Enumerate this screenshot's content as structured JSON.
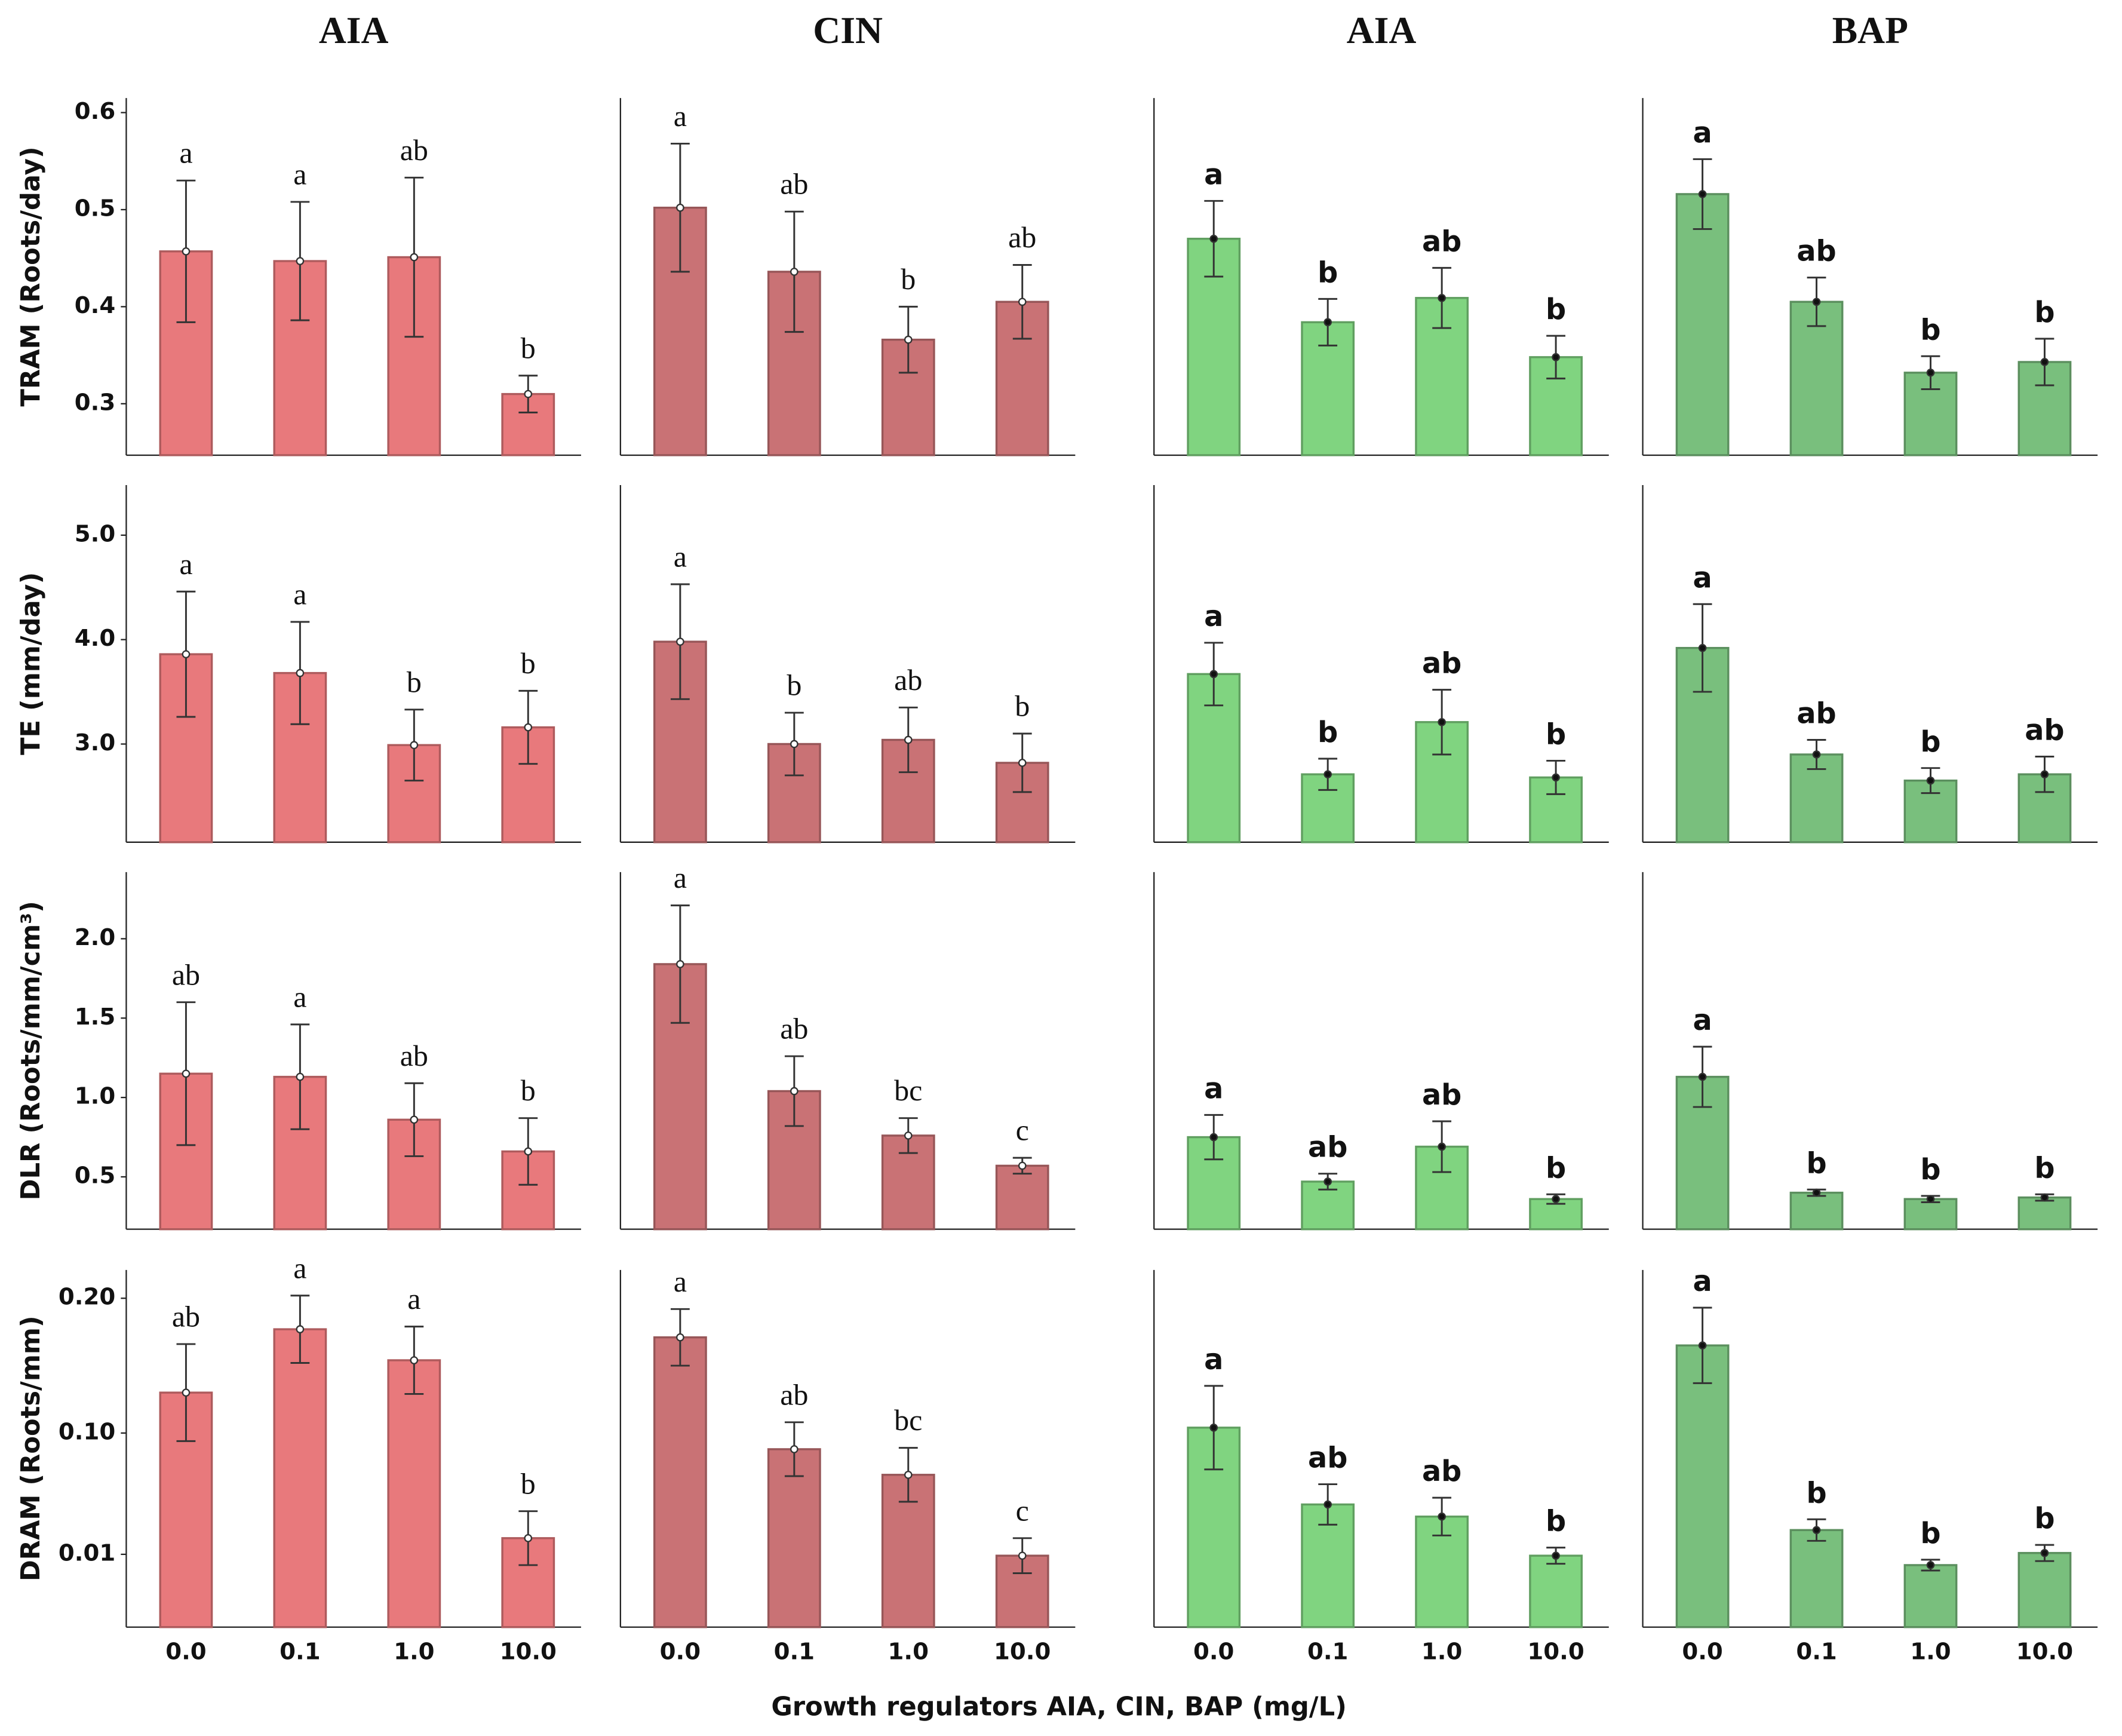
{
  "chart_data": [
    {
      "type": "bar",
      "title": "AIA",
      "ylabel": "TRAM (Roots/day)",
      "values": [
        0.457,
        0.447,
        0.451,
        0.31
      ],
      "errors": [
        0.073,
        0.061,
        0.082,
        0.019
      ],
      "annotations": [
        "a",
        "a",
        "ab",
        "b"
      ],
      "color": "#e8797c",
      "ylim": [
        0.247,
        0.615
      ],
      "yticks": [
        0.3,
        0.4,
        0.5,
        0.6
      ]
    },
    {
      "type": "bar",
      "title": "CIN",
      "values": [
        0.502,
        0.436,
        0.366,
        0.405
      ],
      "errors": [
        0.066,
        0.062,
        0.034,
        0.038
      ],
      "annotations": [
        "a",
        "ab",
        "b",
        "ab"
      ],
      "color": "#c97275",
      "ylim": [
        0.247,
        0.615
      ]
    },
    {
      "type": "bar",
      "title": "AIA",
      "values": [
        0.47,
        0.384,
        0.409,
        0.348
      ],
      "errors": [
        0.039,
        0.024,
        0.031,
        0.022
      ],
      "annotations": [
        "a",
        "b",
        "ab",
        "b"
      ],
      "color": "#80d480",
      "ylim": [
        0.247,
        0.615
      ]
    },
    {
      "type": "bar",
      "title": "BAP",
      "values": [
        0.516,
        0.405,
        0.332,
        0.343
      ],
      "errors": [
        0.036,
        0.025,
        0.017,
        0.024
      ],
      "annotations": [
        "a",
        "ab",
        "b",
        "b"
      ],
      "color": "#79bf7d",
      "ylim": [
        0.247,
        0.615
      ]
    },
    {
      "type": "bar",
      "ylabel": "TE (mm/day)",
      "values": [
        3.86,
        3.68,
        2.99,
        3.16
      ],
      "errors": [
        0.6,
        0.49,
        0.34,
        0.35
      ],
      "annotations": [
        "a",
        "a",
        "b",
        "b"
      ],
      "color": "#e8797c",
      "ylim": [
        2.06,
        5.48
      ],
      "yticks": [
        {
          "value": 3,
          "label": "3.0"
        },
        {
          "value": 4,
          "label": "4.0"
        },
        {
          "value": 5,
          "label": "5.0"
        }
      ]
    },
    {
      "type": "bar",
      "values": [
        3.98,
        3.0,
        3.04,
        2.82
      ],
      "errors": [
        0.55,
        0.3,
        0.31,
        0.28
      ],
      "annotations": [
        "a",
        "b",
        "ab",
        "b"
      ],
      "color": "#c97275",
      "ylim": [
        2.06,
        5.48
      ]
    },
    {
      "type": "bar",
      "values": [
        3.67,
        2.71,
        3.21,
        2.68
      ],
      "errors": [
        0.3,
        0.15,
        0.31,
        0.16
      ],
      "annotations": [
        "a",
        "b",
        "ab",
        "b"
      ],
      "color": "#80d480",
      "ylim": [
        2.06,
        5.48
      ]
    },
    {
      "type": "bar",
      "values": [
        3.92,
        2.9,
        2.65,
        2.71
      ],
      "errors": [
        0.42,
        0.14,
        0.12,
        0.17
      ],
      "annotations": [
        "a",
        "ab",
        "b",
        "ab"
      ],
      "color": "#79bf7d",
      "ylim": [
        2.06,
        5.48
      ]
    },
    {
      "type": "bar",
      "ylabel": "DLR (Roots/mm/cm³)",
      "values": [
        1.15,
        1.13,
        0.86,
        0.66
      ],
      "errors": [
        0.45,
        0.33,
        0.23,
        0.21
      ],
      "annotations": [
        "ab",
        "a",
        "ab",
        "b"
      ],
      "color": "#e8797c",
      "ylim": [
        0.17,
        2.42
      ],
      "yticks": [
        0.5,
        {
          "value": 1,
          "label": "1.0"
        },
        1.5,
        {
          "value": 2,
          "label": "2.0"
        }
      ]
    },
    {
      "type": "bar",
      "values": [
        1.84,
        1.04,
        0.76,
        0.57
      ],
      "errors": [
        0.37,
        0.22,
        0.11,
        0.05
      ],
      "annotations": [
        "a",
        "ab",
        "bc",
        "c"
      ],
      "color": "#c97275",
      "ylim": [
        0.17,
        2.42
      ]
    },
    {
      "type": "bar",
      "values": [
        0.75,
        0.47,
        0.69,
        0.36
      ],
      "errors": [
        0.14,
        0.05,
        0.16,
        0.03
      ],
      "annotations": [
        "a",
        "ab",
        "ab",
        "b"
      ],
      "color": "#80d480",
      "ylim": [
        0.17,
        2.42
      ]
    },
    {
      "type": "bar",
      "values": [
        1.13,
        0.4,
        0.36,
        0.37
      ],
      "errors": [
        0.19,
        0.02,
        0.02,
        0.02
      ],
      "annotations": [
        "a",
        "b",
        "b",
        "b"
      ],
      "color": "#79bf7d",
      "ylim": [
        0.17,
        2.42
      ]
    },
    {
      "type": "bar",
      "ylabel": "DRAM (Roots/mm)",
      "categories": [
        "0.0",
        "0.1",
        "1.0",
        "10.0"
      ],
      "values": [
        0.13,
        0.177,
        0.154,
        0.022
      ],
      "errors": [
        0.036,
        0.025,
        0.025,
        0.02
      ],
      "annotations": [
        "ab",
        "a",
        "a",
        "b"
      ],
      "color": "#e8797c",
      "ylim": [
        -0.044,
        0.221
      ],
      "yticks": [
        0.01,
        {
          "value": 0.1,
          "label": "0.10"
        },
        {
          "value": 0.2,
          "label": "0.20"
        }
      ]
    },
    {
      "type": "bar",
      "categories": [
        "0.0",
        "0.1",
        "1.0",
        "10.0"
      ],
      "values": [
        0.171,
        0.088,
        0.069,
        0.009
      ],
      "errors": [
        0.021,
        0.02,
        0.02,
        0.013
      ],
      "annotations": [
        "a",
        "ab",
        "bc",
        "c"
      ],
      "color": "#c97275",
      "ylim": [
        -0.044,
        0.221
      ]
    },
    {
      "type": "bar",
      "categories": [
        "0.0",
        "0.1",
        "1.0",
        "10.0"
      ],
      "values": [
        0.104,
        0.047,
        0.038,
        0.009
      ],
      "errors": [
        0.031,
        0.015,
        0.014,
        0.006
      ],
      "annotations": [
        "a",
        "ab",
        "ab",
        "b"
      ],
      "color": "#80d480",
      "ylim": [
        -0.044,
        0.221
      ]
    },
    {
      "type": "bar",
      "categories": [
        "0.0",
        "0.1",
        "1.0",
        "10.0"
      ],
      "values": [
        0.165,
        0.028,
        0.002,
        0.011
      ],
      "errors": [
        0.028,
        0.008,
        0.004,
        0.006
      ],
      "annotations": [
        "a",
        "b",
        "b",
        "b"
      ],
      "color": "#79bf7d",
      "ylim": [
        -0.044,
        0.221
      ]
    }
  ],
  "xlabel": "Growth regulators AIA, CIN, BAP (mg/L)"
}
